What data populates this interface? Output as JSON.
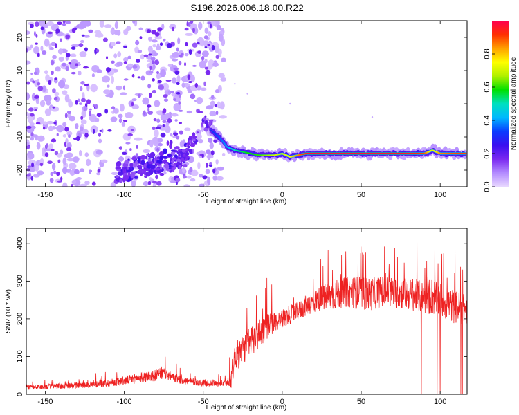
{
  "title": "S196.2026.006.18.00.R22",
  "chart_data": [
    {
      "type": "heatmap",
      "xlabel": "Height of straight line (km)",
      "ylabel": "Frequency (Hz)",
      "xlim": [
        -162,
        117
      ],
      "ylim": [
        -25,
        25
      ],
      "xticks": [
        -150,
        -100,
        -50,
        0,
        50,
        100
      ],
      "yticks": [
        -20,
        -10,
        0,
        10,
        20
      ],
      "colorbar": {
        "label": "Normalized spectral amplitude",
        "range": [
          0,
          1
        ],
        "ticks": [
          "0.0",
          "0.2",
          "0.4",
          "0.6",
          "0.8"
        ],
        "colors": [
          "#e8d8ff",
          "#b38bff",
          "#7a28f0",
          "#3a0ff0",
          "#0a3cff",
          "#00b8ff",
          "#00e0c0",
          "#00e000",
          "#b0f000",
          "#ffff00",
          "#ffa000",
          "#ff3000",
          "#ff0050"
        ]
      },
      "features": {
        "noise_region_x": [
          -162,
          -45
        ],
        "main_tone": {
          "x": [
            -45,
            -40,
            -35,
            -30,
            -25,
            -20,
            -15,
            -10,
            -5,
            0,
            5,
            10,
            15,
            20,
            50,
            80,
            90,
            95,
            100,
            110,
            116
          ],
          "y": [
            -8,
            -10,
            -13,
            -14,
            -14.5,
            -15,
            -15.5,
            -15.5,
            -15.5,
            -15,
            -16,
            -15.5,
            -15,
            -15,
            -15,
            -15,
            -15,
            -14,
            -15,
            -15,
            -15
          ],
          "amplitude": [
            0.3,
            0.35,
            0.4,
            0.5,
            0.55,
            0.6,
            0.6,
            0.65,
            0.7,
            0.7,
            0.75,
            0.85,
            0.95,
            0.97,
            0.97,
            0.95,
            0.9,
            0.7,
            0.85,
            0.9,
            0.9
          ]
        },
        "low_freq_cluster": {
          "x": [
            -105,
            -60
          ],
          "y": [
            -22,
            -11
          ]
        }
      }
    },
    {
      "type": "line",
      "xlabel": "Height of straight line (km)",
      "ylabel": "SNR (10 * v/v)",
      "xlim": [
        -162,
        117
      ],
      "ylim": [
        0,
        440
      ],
      "xticks": [
        -150,
        -100,
        -50,
        0,
        50,
        100
      ],
      "yticks": [
        0,
        100,
        200,
        300,
        400
      ],
      "color": "#ee2222",
      "series": [
        {
          "x": [
            -162,
            -150,
            -140,
            -130,
            -120,
            -110,
            -100,
            -90,
            -80,
            -75,
            -70,
            -60,
            -50,
            -40,
            -35,
            -32,
            -30,
            -25,
            -20,
            -15,
            -10,
            -5,
            0,
            5,
            10,
            15,
            20,
            25,
            30,
            35,
            40,
            45,
            50,
            55,
            60,
            65,
            70,
            75,
            80,
            85,
            90,
            95,
            100,
            105,
            110,
            116
          ],
          "y": [
            18,
            20,
            22,
            24,
            26,
            30,
            36,
            44,
            50,
            56,
            45,
            34,
            30,
            28,
            30,
            50,
            95,
            120,
            140,
            160,
            180,
            190,
            200,
            210,
            220,
            235,
            245,
            255,
            260,
            265,
            270,
            270,
            268,
            265,
            270,
            272,
            270,
            268,
            265,
            262,
            255,
            260,
            250,
            240,
            230,
            225
          ],
          "envelope_amp": [
            12,
            14,
            15,
            16,
            18,
            20,
            24,
            28,
            30,
            34,
            26,
            20,
            18,
            16,
            18,
            70,
            80,
            80,
            85,
            85,
            70,
            55,
            50,
            50,
            50,
            55,
            60,
            70,
            80,
            80,
            80,
            85,
            90,
            90,
            85,
            85,
            85,
            85,
            85,
            85,
            90,
            100,
            95,
            90,
            90,
            80
          ]
        }
      ],
      "dropouts_x": [
        88,
        98,
        100,
        113,
        114
      ]
    }
  ]
}
